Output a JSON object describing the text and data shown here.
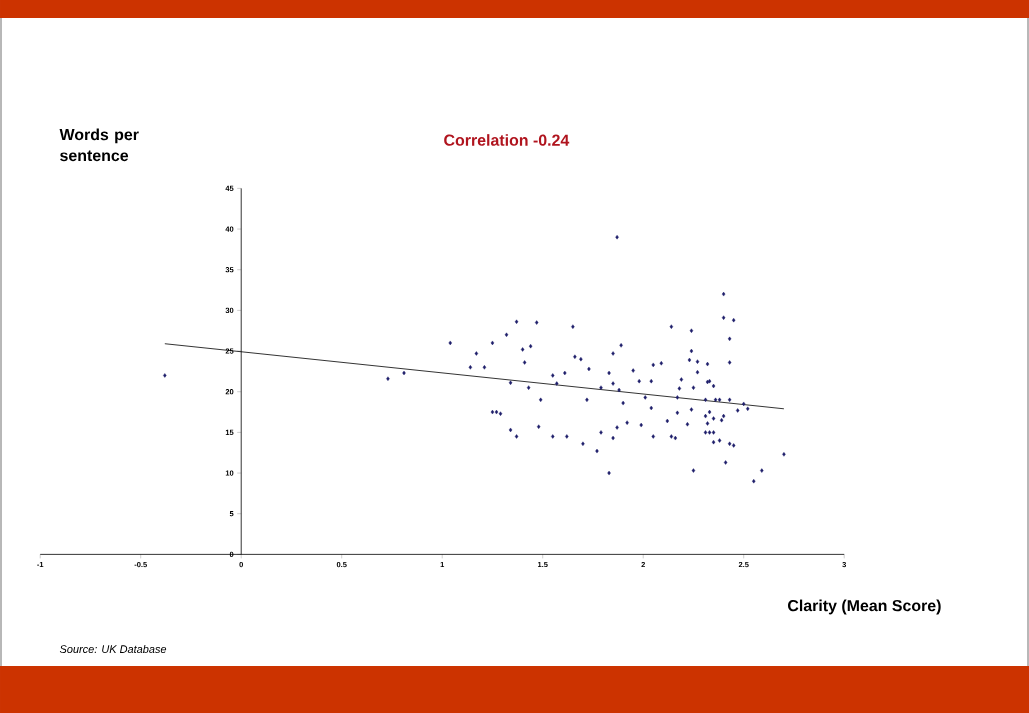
{
  "chart_data": {
    "type": "scatter",
    "title": "Correlation -0.24",
    "xlabel": "Clarity (Mean Score)",
    "ylabel": "Words per sentence",
    "annotations": [
      "Source: UK Database"
    ],
    "xlim": [
      -1,
      3
    ],
    "ylim": [
      0,
      45
    ],
    "xticks": [
      -1,
      -0.5,
      0,
      0.5,
      1,
      1.5,
      2,
      2.5,
      3
    ],
    "yticks": [
      0,
      5,
      10,
      15,
      20,
      25,
      30,
      35,
      40,
      45
    ],
    "grid": false,
    "marker": "diamond",
    "series": [
      {
        "color": "#1f1f6b",
        "x": [
          -0.38,
          0.73,
          0.81,
          1.87,
          1.04,
          1.37,
          1.47,
          1.65,
          1.32,
          1.25,
          1.44,
          1.4,
          1.17,
          1.41,
          1.14,
          1.21,
          1.66,
          1.69,
          1.73,
          1.55,
          1.61,
          1.85,
          1.83,
          1.85,
          1.34,
          1.43,
          1.57,
          1.79,
          1.49,
          1.72,
          1.25,
          1.27,
          1.29,
          1.34,
          1.37,
          1.48,
          1.55,
          1.62,
          1.7,
          1.77,
          1.79,
          1.87,
          1.85,
          1.83,
          2.4,
          2.4,
          2.45,
          2.14,
          2.24,
          2.43,
          2.24,
          2.23,
          2.27,
          2.32,
          2.43,
          1.89,
          1.95,
          2.05,
          2.09,
          2.27,
          1.98,
          2.04,
          2.19,
          2.32,
          2.33,
          2.35,
          2.18,
          2.25,
          1.88,
          2.01,
          2.17,
          2.31,
          2.36,
          2.38,
          2.43,
          2.5,
          2.52,
          2.47,
          1.9,
          2.04,
          2.24,
          2.17,
          2.33,
          2.31,
          2.35,
          2.4,
          2.39,
          2.12,
          1.92,
          1.99,
          2.22,
          2.32,
          2.31,
          2.33,
          2.35,
          2.05,
          2.14,
          2.16,
          2.35,
          2.38,
          2.43,
          2.45,
          2.7,
          2.41,
          2.25,
          2.59,
          2.55
        ],
        "values": [
          22.0,
          21.6,
          22.3,
          39.0,
          26.0,
          28.6,
          28.5,
          28.0,
          27.0,
          26.0,
          25.6,
          25.2,
          24.7,
          23.6,
          23.0,
          23.0,
          24.3,
          24.0,
          22.8,
          22.0,
          22.3,
          24.7,
          22.3,
          21.0,
          21.1,
          20.5,
          21.0,
          20.5,
          19.0,
          19.0,
          17.5,
          17.5,
          17.3,
          15.3,
          14.5,
          15.7,
          14.5,
          14.5,
          13.6,
          12.7,
          15.0,
          15.6,
          14.3,
          10.0,
          32.0,
          29.1,
          28.8,
          28.0,
          27.5,
          26.5,
          25.0,
          23.9,
          23.7,
          23.4,
          23.6,
          25.7,
          22.6,
          23.3,
          23.5,
          22.4,
          21.3,
          21.3,
          21.5,
          21.2,
          21.3,
          20.7,
          20.4,
          20.5,
          20.2,
          19.3,
          19.3,
          19.0,
          19.0,
          19.0,
          19.0,
          18.5,
          17.9,
          17.7,
          18.6,
          18.0,
          17.8,
          17.4,
          17.5,
          17.0,
          16.7,
          17.0,
          16.5,
          16.4,
          16.2,
          15.9,
          16.0,
          16.1,
          15.0,
          15.0,
          15.0,
          14.5,
          14.5,
          14.3,
          13.8,
          14.0,
          13.6,
          13.4,
          12.3,
          11.3,
          10.3,
          10.3,
          9.0
        ]
      },
      {
        "type": "line",
        "color": "#000000",
        "marker": "none",
        "x": [
          -0.38,
          2.7
        ],
        "values": [
          25.9,
          17.9
        ]
      }
    ]
  }
}
